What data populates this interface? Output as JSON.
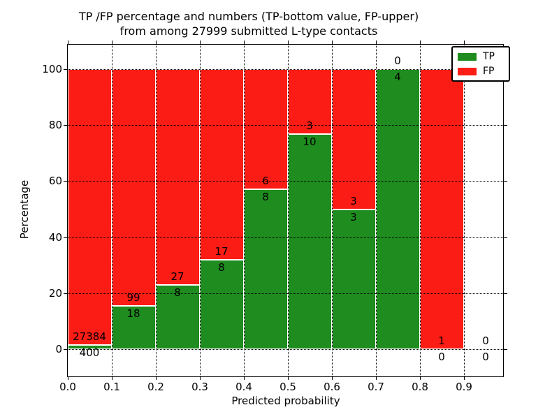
{
  "chart_data": {
    "type": "bar",
    "stacked": true,
    "title": "TP /FP percentage and numbers (TP-bottom value, FP-upper)\nfrom among 27999 submitted L-type contacts",
    "title_line1": "TP /FP percentage and numbers (TP-bottom value, FP-upper)",
    "title_line2": "from among 27999 submitted L-type contacts",
    "xlabel": "Predicted probability",
    "ylabel": "Percentage",
    "total_submitted": 27999,
    "x_tick_labels": [
      "0.0",
      "0.1",
      "0.2",
      "0.3",
      "0.4",
      "0.5",
      "0.6",
      "0.7",
      "0.8",
      "0.9"
    ],
    "y_ticks": [
      0,
      20,
      40,
      60,
      80,
      100
    ],
    "xlim": [
      0.0,
      0.99
    ],
    "ylim": [
      -10,
      110
    ],
    "grid": "dotted",
    "legend_position": "upper right",
    "colors": {
      "tp": "#1e8c1e",
      "fp": "#fb1d15",
      "grid": "#000000",
      "text": "#000000",
      "background": "#ffffff"
    },
    "legend": {
      "entries": [
        {
          "label": "TP",
          "color_key": "tp"
        },
        {
          "label": "FP",
          "color_key": "fp"
        }
      ]
    },
    "categories": [
      "0.0-0.1",
      "0.1-0.2",
      "0.2-0.3",
      "0.3-0.4",
      "0.4-0.5",
      "0.5-0.6",
      "0.6-0.7",
      "0.7-0.8",
      "0.8-0.9",
      "0.9-1.0"
    ],
    "series": [
      {
        "name": "TP",
        "counts": [
          400,
          18,
          8,
          8,
          8,
          10,
          3,
          4,
          0,
          0
        ]
      },
      {
        "name": "FP",
        "counts": [
          27384,
          99,
          27,
          17,
          6,
          3,
          3,
          0,
          1,
          0
        ]
      }
    ],
    "tp_percent": [
      1.44,
      15.38,
      22.86,
      32.0,
      57.14,
      76.92,
      50.0,
      100.0,
      0.0,
      null
    ]
  }
}
